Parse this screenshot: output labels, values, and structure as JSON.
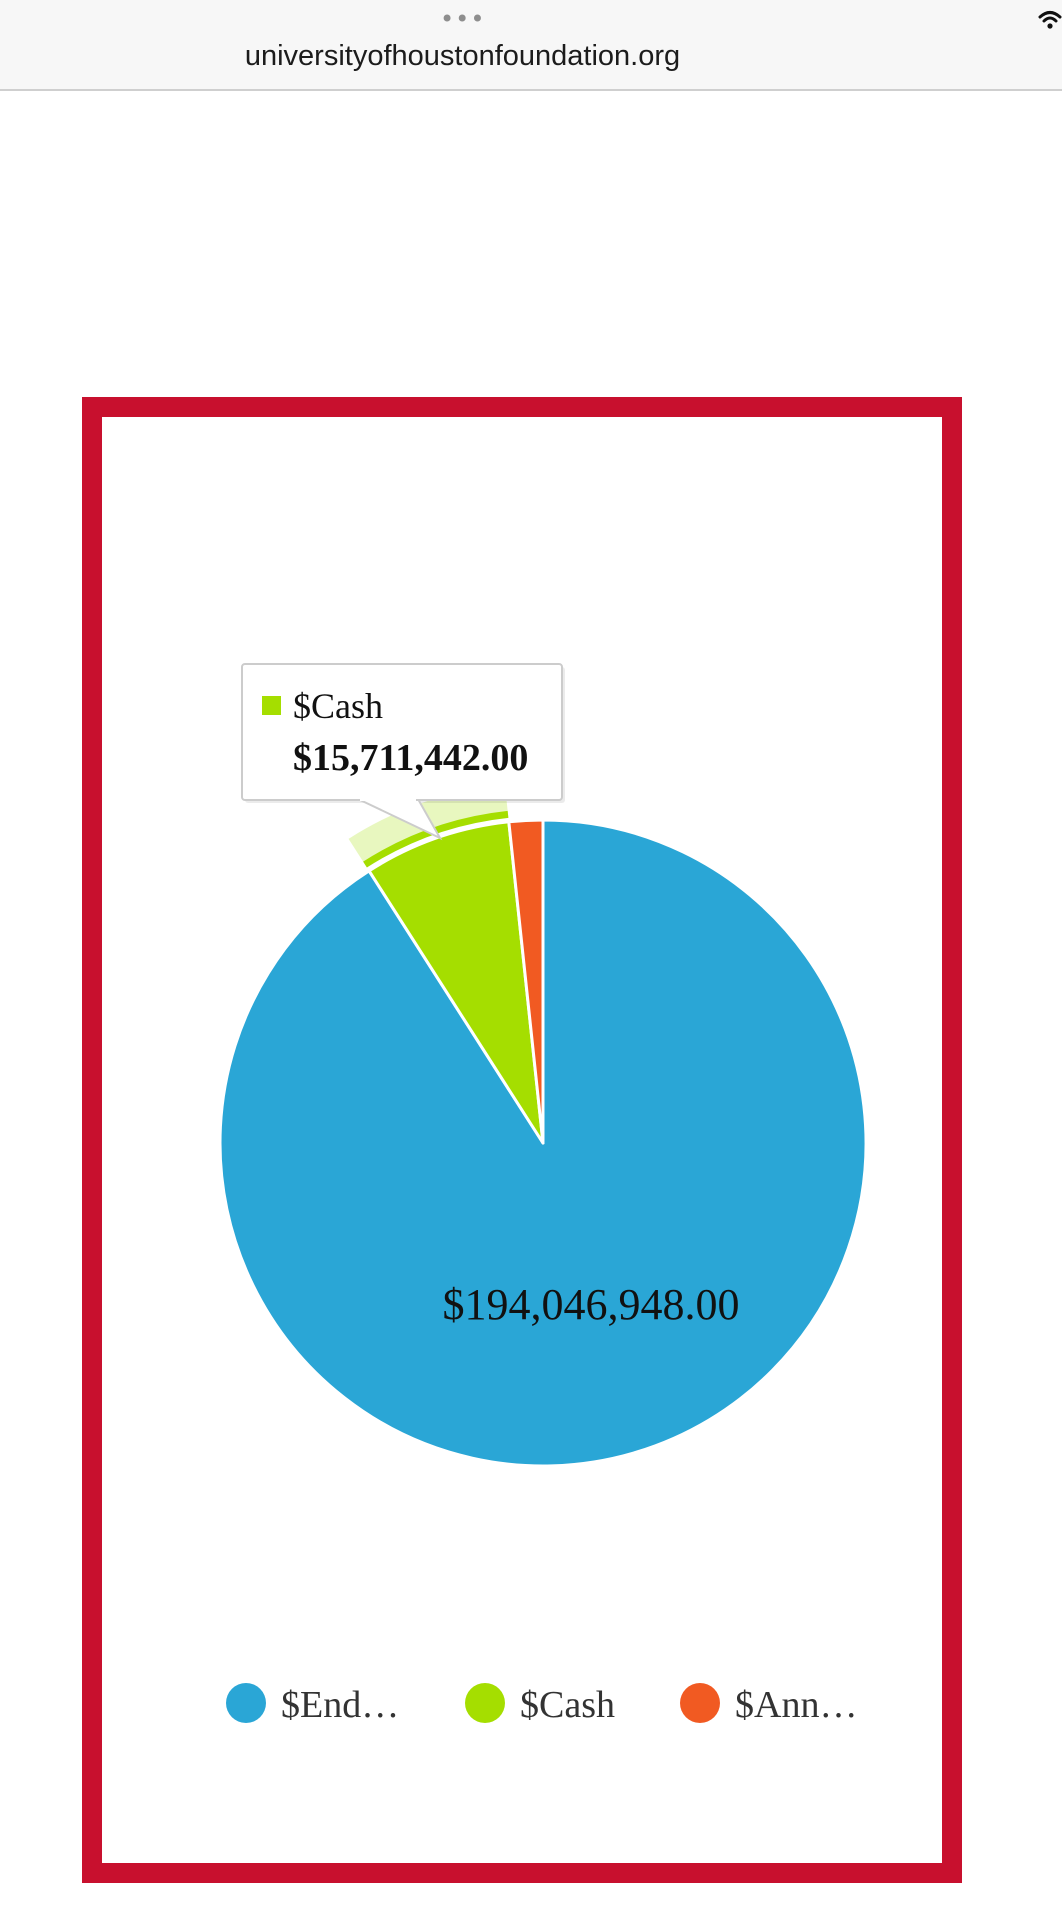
{
  "browser": {
    "url": "universityofhoustonfoundation.org",
    "menu_icon": "ellipsis-icon",
    "wifi_icon": "wifi-icon"
  },
  "chart_data": {
    "type": "pie",
    "series": [
      {
        "name": "$End…",
        "value": 194046948.0,
        "label": "$194,046,948.00",
        "color": "#2aa6d6"
      },
      {
        "name": "$Cash",
        "value": 15711442.0,
        "label": "$15,711,442.00",
        "color": "#a5de00"
      },
      {
        "name": "$Ann…",
        "value": 3600000,
        "label": "",
        "color": "#f15a22"
      }
    ],
    "highlighted_index": 1,
    "tooltip": {
      "series_name": "$Cash",
      "value_label": "$15,711,442.00"
    },
    "legend_placement": "bottom"
  },
  "frame_color": "#c8102e"
}
